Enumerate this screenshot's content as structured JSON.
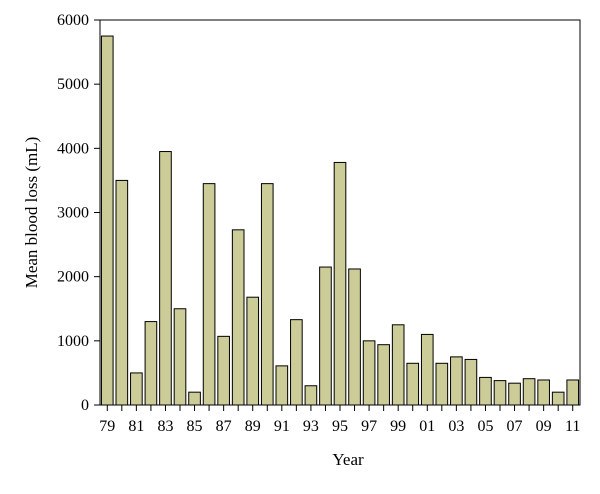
{
  "chart_data": {
    "type": "bar",
    "title": "",
    "xlabel": "Year",
    "ylabel": "Mean blood loss (mL)",
    "ylim": [
      0,
      6000
    ],
    "yticks": [
      0,
      1000,
      2000,
      3000,
      4000,
      5000,
      6000
    ],
    "grid": false,
    "legend": "none",
    "bar_color": "#cccc99",
    "bar_edge_color": "#000000",
    "categories": [
      "79",
      "80",
      "81",
      "82",
      "83",
      "84",
      "85",
      "86",
      "87",
      "88",
      "89",
      "90",
      "91",
      "92",
      "93",
      "94",
      "95",
      "96",
      "97",
      "98",
      "99",
      "00",
      "01",
      "02",
      "03",
      "04",
      "05",
      "06",
      "07",
      "08",
      "09",
      "10",
      "11"
    ],
    "category_labels_shown": [
      "79",
      "81",
      "83",
      "85",
      "87",
      "89",
      "91",
      "93",
      "95",
      "97",
      "99",
      "01",
      "03",
      "05",
      "07",
      "09",
      "11"
    ],
    "values": [
      5750,
      3500,
      500,
      1300,
      3950,
      1500,
      200,
      3450,
      1070,
      2730,
      1680,
      3450,
      610,
      1330,
      300,
      2150,
      3780,
      2120,
      1000,
      940,
      1250,
      650,
      1100,
      650,
      750,
      710,
      430,
      380,
      340,
      410,
      390,
      200,
      390
    ]
  }
}
